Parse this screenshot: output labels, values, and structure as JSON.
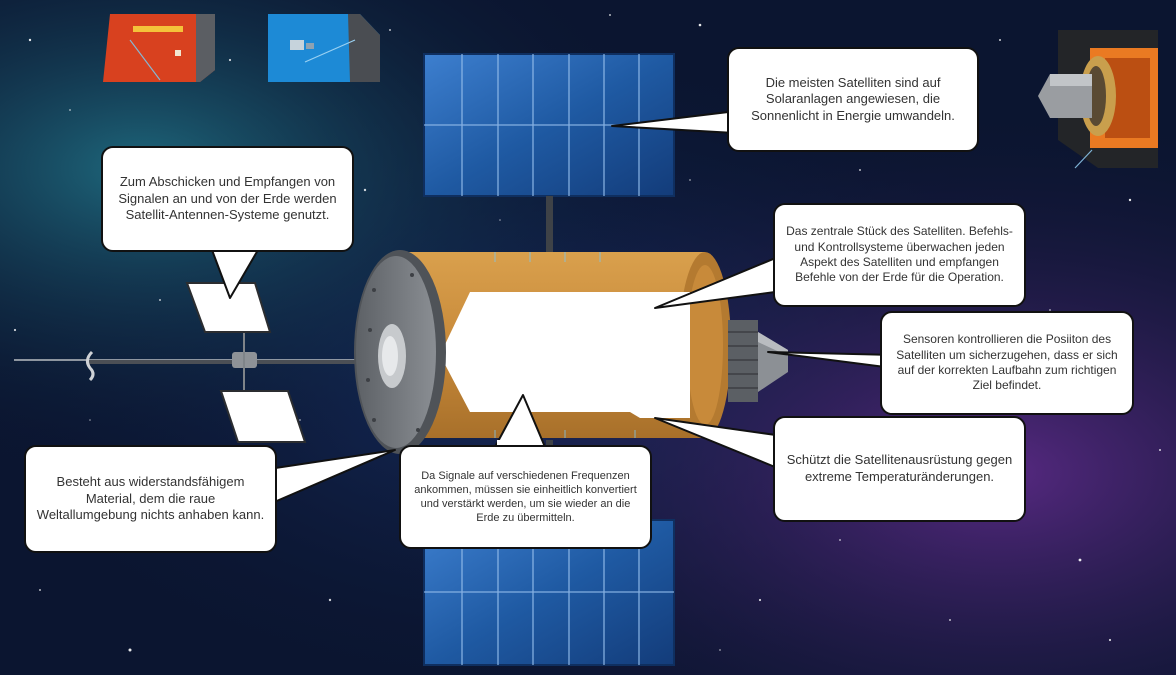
{
  "callouts": {
    "solar": "Die meisten Satelliten sind auf Solaranlagen angewiesen, die Sonnenlicht in Energie umwandeln.",
    "antenna": "Zum Abschicken und Empfangen von Signalen an und von der Erde werden Satellit-Antennen-Systeme genutzt.",
    "bus": "Das zentrale Stück des Satelliten. Befehls- und Kontrollsysteme überwachen jeden Aspekt des Satelliten und empfangen Befehle von der Erde für die Operation.",
    "sensors": "Sensoren kontrollieren die Posiiton des Satelliten um sicherzugehen, dass er sich auf der korrekten Laufbahn zum richtigen Ziel befindet.",
    "thermal": "Schützt die Satellitenausrüstung gegen extreme Temperaturänderungen.",
    "material": "Besteht aus widerstandsfähigem Material, dem die raue Weltallumgebung nichts anhaben kann.",
    "transponder": "Da Signale auf verschiedenen Frequenzen ankommen, müssen sie einheitlich konvertiert und verstärkt werden, um sie wieder an die Erde zu übermitteln."
  },
  "colors": {
    "space_dark": "#0b1530",
    "space_purple": "#3a1d5e",
    "space_teal": "#1e5a73",
    "solar_blue": "#1f5aa3",
    "body_orange": "#c88a3a",
    "endcap_gray": "#6f7378",
    "thumb_red": "#d8411f",
    "thumb_blue": "#1d8ad6"
  }
}
